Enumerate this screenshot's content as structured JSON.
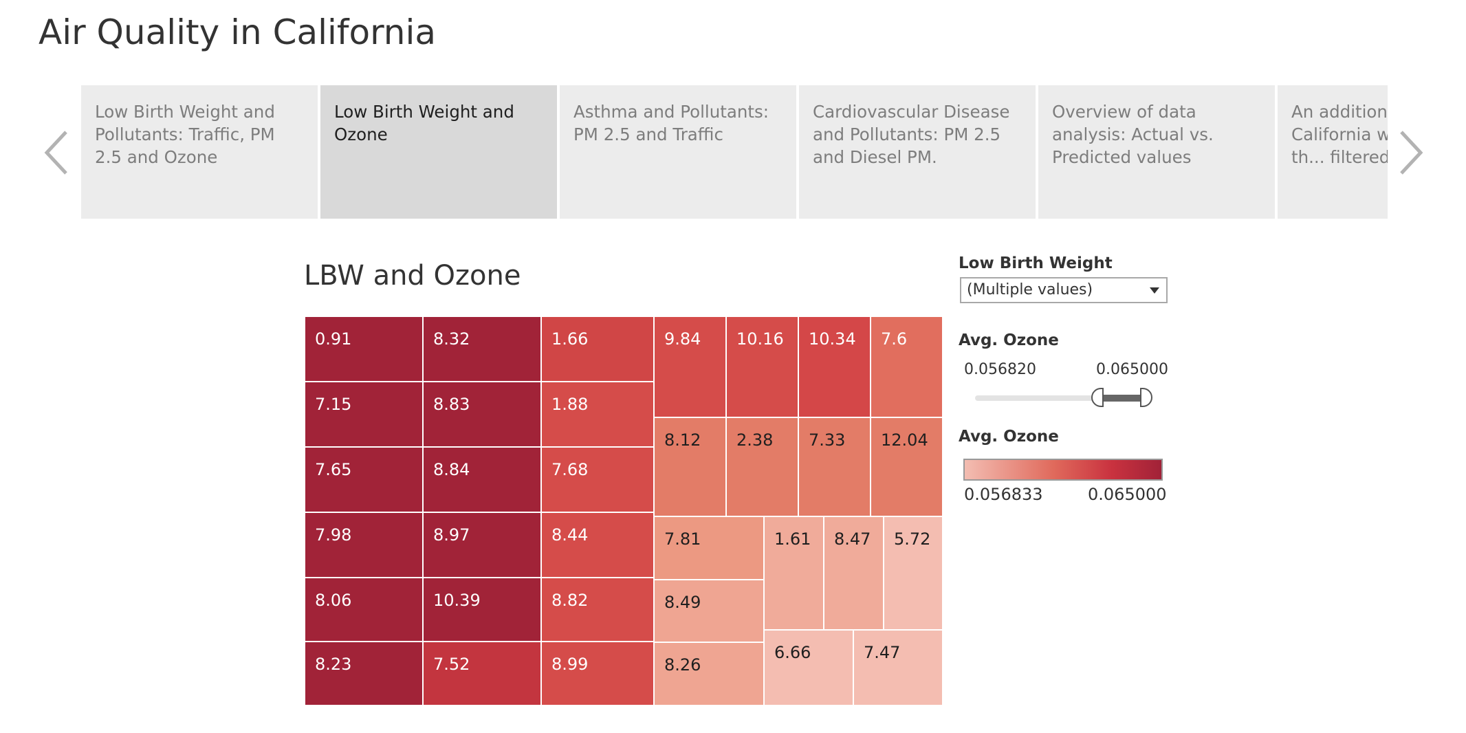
{
  "page": {
    "title": "Air Quality in California"
  },
  "story": {
    "points": [
      {
        "label": "Low Birth Weight and Pollutants: Traffic, PM 2.5 and Ozone",
        "active": false
      },
      {
        "label": "Low Birth Weight and Ozone",
        "active": true
      },
      {
        "label": "Asthma and Pollutants: PM 2.5 and Traffic",
        "active": false
      },
      {
        "label": "Cardiovascular Disease and Pollutants: PM 2.5 and Diesel PM.",
        "active": false
      },
      {
        "label": "Overview of data analysis: Actual vs. Predicted values",
        "active": false
      },
      {
        "label": "An additional view of California w... measures th... filtered for d...",
        "active": false
      }
    ]
  },
  "viz": {
    "title": "LBW and Ozone"
  },
  "filters": {
    "lbw_label": "Low Birth Weight",
    "lbw_value": "(Multiple values)",
    "ozone_label": "Avg. Ozone",
    "ozone_min": "0.056820",
    "ozone_max": "0.065000",
    "ozone_range_fraction": [
      0.72,
      1.0
    ]
  },
  "legend": {
    "title": "Avg. Ozone",
    "min": "0.056833",
    "max": "0.065000",
    "colors": [
      "#f3bdb2",
      "#e06a5c",
      "#c9323f",
      "#a12238"
    ]
  },
  "chart_data": {
    "type": "treemap",
    "title": "LBW and Ozone",
    "color_measure": "Avg. Ozone",
    "cells": [
      {
        "label": "0.91",
        "value": 0.91,
        "color": "#a12338"
      },
      {
        "label": "7.15",
        "value": 7.15,
        "color": "#a12338"
      },
      {
        "label": "7.65",
        "value": 7.65,
        "color": "#a12338"
      },
      {
        "label": "7.98",
        "value": 7.98,
        "color": "#a12338"
      },
      {
        "label": "8.06",
        "value": 8.06,
        "color": "#a12338"
      },
      {
        "label": "8.23",
        "value": 8.23,
        "color": "#a12338"
      },
      {
        "label": "8.32",
        "value": 8.32,
        "color": "#a12338"
      },
      {
        "label": "8.83",
        "value": 8.83,
        "color": "#a12338"
      },
      {
        "label": "8.84",
        "value": 8.84,
        "color": "#a12338"
      },
      {
        "label": "8.97",
        "value": 8.97,
        "color": "#a12338"
      },
      {
        "label": "10.39",
        "value": 10.39,
        "color": "#a12338"
      },
      {
        "label": "7.52",
        "value": 7.52,
        "color": "#c3353f"
      },
      {
        "label": "1.66",
        "value": 1.66,
        "color": "#d04646"
      },
      {
        "label": "1.88",
        "value": 1.88,
        "color": "#d54c4a"
      },
      {
        "label": "7.68",
        "value": 7.68,
        "color": "#d54c4a"
      },
      {
        "label": "8.44",
        "value": 8.44,
        "color": "#d54c4a"
      },
      {
        "label": "8.82",
        "value": 8.82,
        "color": "#d54c4a"
      },
      {
        "label": "8.99",
        "value": 8.99,
        "color": "#d54c4a"
      },
      {
        "label": "9.84",
        "value": 9.84,
        "color": "#d54c4a"
      },
      {
        "label": "10.16",
        "value": 10.16,
        "color": "#d54c4a"
      },
      {
        "label": "10.34",
        "value": 10.34,
        "color": "#d44748"
      },
      {
        "label": "7.6",
        "value": 7.6,
        "color": "#e16e5e"
      },
      {
        "label": "8.12",
        "value": 8.12,
        "color": "#e37c67"
      },
      {
        "label": "2.38",
        "value": 2.38,
        "color": "#e37c67"
      },
      {
        "label": "7.33",
        "value": 7.33,
        "color": "#e37c67"
      },
      {
        "label": "12.04",
        "value": 12.04,
        "color": "#e37c67"
      },
      {
        "label": "7.81",
        "value": 7.81,
        "color": "#ec9982"
      },
      {
        "label": "8.49",
        "value": 8.49,
        "color": "#efa592"
      },
      {
        "label": "8.26",
        "value": 8.26,
        "color": "#efa592"
      },
      {
        "label": "1.61",
        "value": 1.61,
        "color": "#f0ab9a"
      },
      {
        "label": "8.47",
        "value": 8.47,
        "color": "#f0ab9a"
      },
      {
        "label": "5.72",
        "value": 5.72,
        "color": "#f4bdb1"
      },
      {
        "label": "6.66",
        "value": 6.66,
        "color": "#f4bdb1"
      },
      {
        "label": "7.47",
        "value": 7.47,
        "color": "#f4bdb1"
      }
    ]
  }
}
